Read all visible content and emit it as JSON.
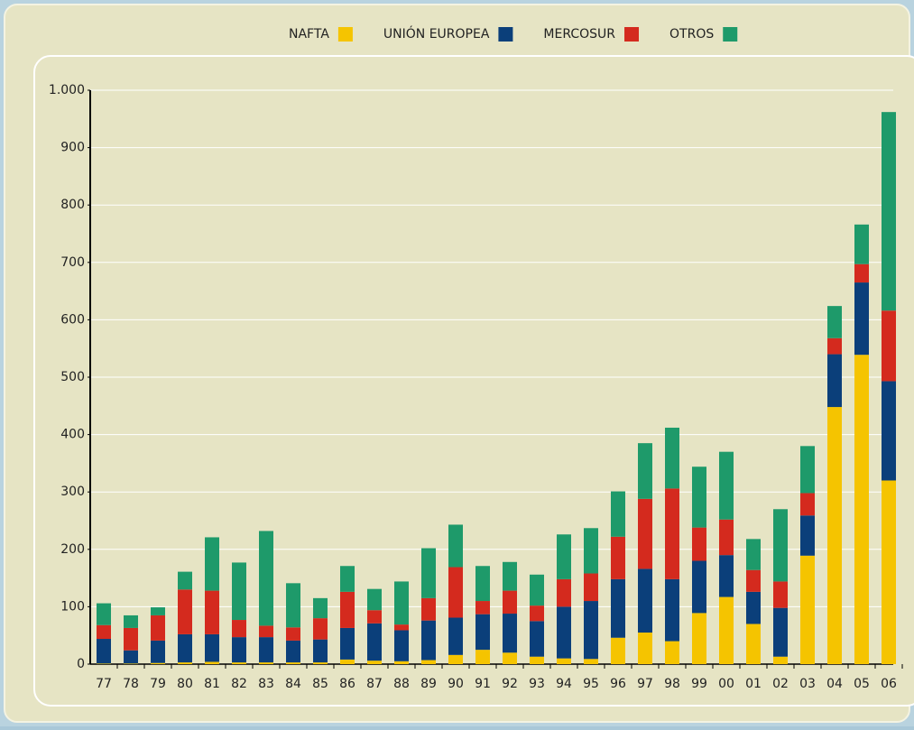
{
  "chart_data": {
    "type": "stacked_bar",
    "categories": [
      "77",
      "78",
      "79",
      "80",
      "81",
      "82",
      "83",
      "84",
      "85",
      "86",
      "87",
      "88",
      "89",
      "90",
      "91",
      "92",
      "93",
      "94",
      "95",
      "96",
      "97",
      "98",
      "99",
      "00",
      "01",
      "02",
      "03",
      "04",
      "05",
      "06"
    ],
    "series": [
      {
        "name": "NAFTA",
        "color": "#f5c400",
        "values": [
          1,
          1,
          2,
          3,
          4,
          3,
          3,
          3,
          3,
          8,
          6,
          5,
          7,
          16,
          25,
          20,
          13,
          10,
          9,
          46,
          55,
          40,
          89,
          117,
          70,
          13,
          189,
          448,
          539,
          320
        ]
      },
      {
        "name": "UNIÓN EUROPEA",
        "color": "#0b3f7a",
        "values": [
          43,
          23,
          39,
          49,
          48,
          44,
          44,
          38,
          40,
          55,
          65,
          54,
          69,
          65,
          62,
          68,
          62,
          90,
          101,
          102,
          111,
          108,
          91,
          73,
          56,
          85,
          70,
          92,
          126,
          173
        ]
      },
      {
        "name": "MERCOSUR",
        "color": "#d42a1e",
        "values": [
          24,
          39,
          44,
          78,
          76,
          30,
          20,
          23,
          37,
          63,
          23,
          10,
          39,
          88,
          23,
          40,
          27,
          48,
          48,
          74,
          122,
          158,
          58,
          62,
          38,
          46,
          39,
          28,
          32,
          123
        ]
      },
      {
        "name": "OTROS",
        "color": "#1e9a6a",
        "values": [
          38,
          22,
          14,
          31,
          93,
          100,
          165,
          77,
          35,
          45,
          37,
          75,
          87,
          74,
          61,
          50,
          54,
          78,
          79,
          79,
          97,
          106,
          106,
          118,
          54,
          126,
          82,
          56,
          69,
          346
        ]
      }
    ],
    "ylim": [
      0,
      1000
    ],
    "yticks": [
      0,
      100,
      200,
      300,
      400,
      500,
      600,
      700,
      800,
      900,
      {
        "value": 1000,
        "label": "1.000"
      }
    ],
    "grid": true
  }
}
